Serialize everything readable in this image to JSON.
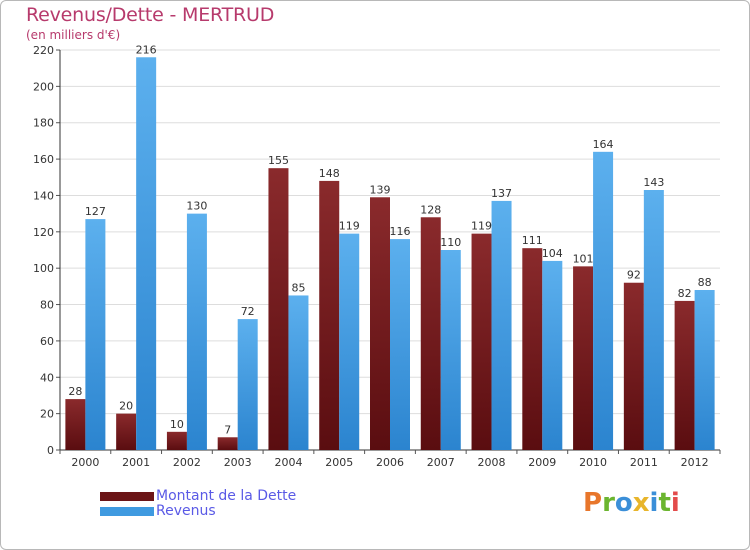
{
  "header": {
    "title": "Revenus/Dette - MERTRUD",
    "subtitle": "(en milliers d'€)"
  },
  "chart_data": {
    "type": "bar",
    "categories": [
      "2000",
      "2001",
      "2002",
      "2003",
      "2004",
      "2005",
      "2006",
      "2007",
      "2008",
      "2009",
      "2010",
      "2011",
      "2012"
    ],
    "series": [
      {
        "name": "Montant de la Dette",
        "values": [
          28,
          20,
          10,
          7,
          155,
          148,
          139,
          128,
          119,
          111,
          101,
          92,
          82
        ],
        "color": "#7a1f22"
      },
      {
        "name": "Revenus",
        "values": [
          127,
          216,
          130,
          72,
          85,
          119,
          116,
          110,
          137,
          104,
          164,
          143,
          88
        ],
        "color": "#3f9ae0"
      }
    ],
    "ylim": [
      0,
      220
    ],
    "yticks": [
      0,
      20,
      40,
      60,
      80,
      100,
      120,
      140,
      160,
      180,
      200,
      220
    ],
    "grid": true,
    "legend_position": "bottom-left"
  },
  "legend": {
    "debt_label": "Montant de la Dette",
    "revenue_label": "Revenus",
    "debt_color": "#6b1416",
    "revenue_color": "#3f9ae0"
  },
  "logo": {
    "text": "Proxiti",
    "colors": [
      "#e8762b",
      "#6bb52f",
      "#3b8fd8",
      "#e8b52b",
      "#3b8fd8",
      "#6bb52f",
      "#e34b4b"
    ]
  }
}
